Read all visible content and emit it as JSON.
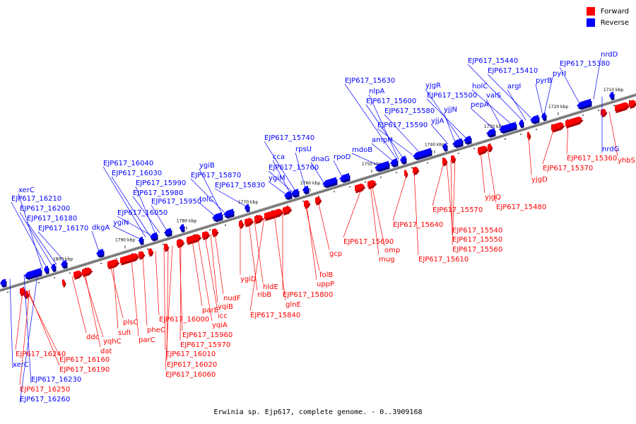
{
  "caption": "Erwinia sp. Ejp617, complete genome. - 0..3909168",
  "legend": [
    {
      "label": "Forward",
      "color": "#ff0000"
    },
    {
      "label": "Reverse",
      "color": "#0000ff"
    }
  ],
  "colors": {
    "forward": "#ff0000",
    "forward_dark": "#b00000",
    "reverse": "#0000ff",
    "reverse_dark": "#00008b",
    "axis": "#7a7a7a"
  },
  "ticks": [
    "1710 kbp",
    "1720 kbp",
    "1730 kbp",
    "1740 kbp",
    "1750 kbp",
    "1760 kbp",
    "1770 kbp",
    "1780 kbp",
    "1790 kbp",
    "1800 kbp"
  ],
  "reverse_labels": [
    {
      "text": "xerC"
    },
    {
      "text": "EJP617_16210"
    },
    {
      "text": "EJP617_16200"
    },
    {
      "text": "EJP617_16180"
    },
    {
      "text": "EJP617_16170"
    },
    {
      "text": "dkgA"
    },
    {
      "text": "ygiN"
    },
    {
      "text": "EJP617_16050"
    },
    {
      "text": "EJP617_15950"
    },
    {
      "text": "EJP617_15980"
    },
    {
      "text": "EJP617_15990"
    },
    {
      "text": "EJP617_16030"
    },
    {
      "text": "EJP617_16040"
    },
    {
      "text": "tolC"
    },
    {
      "text": "EJP617_15830"
    },
    {
      "text": "EJP617_15870"
    },
    {
      "text": "ygiB"
    },
    {
      "text": "ygiM"
    },
    {
      "text": "EJP617_15760"
    },
    {
      "text": "cca"
    },
    {
      "text": "dnaG"
    },
    {
      "text": "rpsU"
    },
    {
      "text": "EJP617_15740"
    },
    {
      "text": "rpoD"
    },
    {
      "text": "mdoB"
    },
    {
      "text": "ampH"
    },
    {
      "text": "EJP617_15590"
    },
    {
      "text": "EJP617_15580"
    },
    {
      "text": "EJP617_15600"
    },
    {
      "text": "nlpA"
    },
    {
      "text": "EJP617_15630"
    },
    {
      "text": "yjjA"
    },
    {
      "text": "yjjN"
    },
    {
      "text": "EJP617_15500"
    },
    {
      "text": "yjgR"
    },
    {
      "text": "pepA"
    },
    {
      "text": "valS"
    },
    {
      "text": "holC"
    },
    {
      "text": "argI"
    },
    {
      "text": "EJP617_15410"
    },
    {
      "text": "EJP617_15440"
    },
    {
      "text": "pyrB"
    },
    {
      "text": "pyrI"
    },
    {
      "text": "EJP617_15380"
    },
    {
      "text": "nrdD"
    },
    {
      "text": "xerC"
    },
    {
      "text": "EJP617_16230"
    },
    {
      "text": "EJP617_16260"
    },
    {
      "text": "nrdG"
    }
  ],
  "forward_labels": [
    {
      "text": "EJP617_16240"
    },
    {
      "text": "EJP617_16160"
    },
    {
      "text": "EJP617_16190"
    },
    {
      "text": "EJP617_16250"
    },
    {
      "text": "ddc"
    },
    {
      "text": "yqhC"
    },
    {
      "text": "dat"
    },
    {
      "text": "plsC"
    },
    {
      "text": "sufI"
    },
    {
      "text": "parC"
    },
    {
      "text": "pheC"
    },
    {
      "text": "EJP617_16000"
    },
    {
      "text": "EJP617_16010"
    },
    {
      "text": "EJP617_16020"
    },
    {
      "text": "EJP617_16060"
    },
    {
      "text": "EJP617_15960"
    },
    {
      "text": "EJP617_15970"
    },
    {
      "text": "yqiA"
    },
    {
      "text": "parE"
    },
    {
      "text": "icc"
    },
    {
      "text": "yqiB"
    },
    {
      "text": "nudF"
    },
    {
      "text": "ygiD"
    },
    {
      "text": "ribB"
    },
    {
      "text": "hldE"
    },
    {
      "text": "EJP617_15840"
    },
    {
      "text": "glnE"
    },
    {
      "text": "EJP617_15800"
    },
    {
      "text": "uppP"
    },
    {
      "text": "folB"
    },
    {
      "text": "gcp"
    },
    {
      "text": "EJP617_15690"
    },
    {
      "text": "omp"
    },
    {
      "text": "mug"
    },
    {
      "text": "EJP617_15640"
    },
    {
      "text": "EJP617_15610"
    },
    {
      "text": "EJP617_15570"
    },
    {
      "text": "EJP617_15540"
    },
    {
      "text": "EJP617_15550"
    },
    {
      "text": "EJP617_15560"
    },
    {
      "text": "yjgQ"
    },
    {
      "text": "EJP617_15480"
    },
    {
      "text": "yjgD"
    },
    {
      "text": "EJP617_15370"
    },
    {
      "text": "EJP617_15360"
    },
    {
      "text": "yhbS"
    }
  ]
}
